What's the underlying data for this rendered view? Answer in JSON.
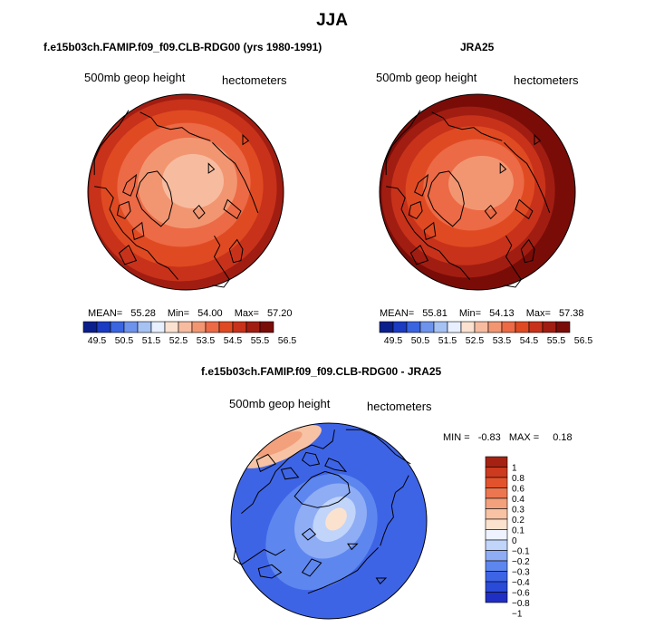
{
  "figure": {
    "season_title": "JJA",
    "colors": {
      "coast": "#000000",
      "scale_abs": [
        "#0b1f8c",
        "#1a3bc2",
        "#3a64e0",
        "#6e93ec",
        "#a6c2f3",
        "#e8f0ff",
        "#fbe1cf",
        "#f7bca0",
        "#f29672",
        "#ec6a45",
        "#e04a22",
        "#c8321a",
        "#a11d12",
        "#7a0c08"
      ],
      "scale_diff": [
        "#1f2fc4",
        "#2a4ad8",
        "#3e64e6",
        "#5e86ef",
        "#8fadf5",
        "#c1d4fa",
        "#eef3ff",
        "#fbe2cf",
        "#f7c3a4",
        "#f3a07c",
        "#ec7650",
        "#e2532d",
        "#cc3a1f",
        "#a52212"
      ]
    }
  },
  "panels": [
    {
      "title": "f.e15b03ch.FAMIP.f09_f09.CLB-RDG00 (yrs 1980-1991)",
      "field_label": "500mb geop height",
      "units_label": "hectometers",
      "stats": {
        "mean_label": "MEAN=",
        "mean": "55.28",
        "min_label": "Min=",
        "min": "54.00",
        "max_label": "Max=",
        "max": "57.20"
      }
    },
    {
      "title": "JRA25",
      "field_label": "500mb geop height",
      "units_label": "hectometers",
      "stats": {
        "mean_label": "MEAN=",
        "mean": "55.81",
        "min_label": "Min=",
        "min": "54.13",
        "max_label": "Max=",
        "max": "57.38"
      }
    },
    {
      "title": "f.e15b03ch.FAMIP.f09_f09.CLB-RDG00 - JRA25",
      "field_label": "500mb geop height",
      "units_label": "hectometers",
      "stats": {
        "min_label": "MIN =",
        "min": "-0.83",
        "max_label": "MAX =",
        "max": "0.18"
      }
    }
  ],
  "chart_data": [
    {
      "type": "heatmap",
      "projection": "polar stereographic (North Pole)",
      "title": "f.e15b03ch.FAMIP.f09_f09.CLB-RDG00 (yrs 1980-1991)",
      "variable": "500mb geop height",
      "units": "hectometers",
      "mean": 55.28,
      "min": 54.0,
      "max": 57.2,
      "colorbar_ticks": [
        "49.5",
        "50.5",
        "51.5",
        "52.5",
        "53.5",
        "54.5",
        "55.5",
        "56.5"
      ],
      "colorbar_orientation": "horizontal"
    },
    {
      "type": "heatmap",
      "projection": "polar stereographic (North Pole)",
      "title": "JRA25",
      "variable": "500mb geop height",
      "units": "hectometers",
      "mean": 55.81,
      "min": 54.13,
      "max": 57.38,
      "colorbar_ticks": [
        "49.5",
        "50.5",
        "51.5",
        "52.5",
        "53.5",
        "54.5",
        "55.5",
        "56.5"
      ],
      "colorbar_orientation": "horizontal"
    },
    {
      "type": "heatmap",
      "projection": "polar stereographic (North Pole)",
      "title": "f.e15b03ch.FAMIP.f09_f09.CLB-RDG00 - JRA25",
      "variable": "500mb geop height",
      "units": "hectometers",
      "min": -0.83,
      "max": 0.18,
      "colorbar_ticks": [
        "1",
        "0.8",
        "0.6",
        "0.4",
        "0.3",
        "0.2",
        "0.1",
        "0",
        "-0.1",
        "-0.2",
        "-0.3",
        "-0.4",
        "-0.6",
        "-0.8",
        "-1"
      ],
      "colorbar_orientation": "vertical"
    }
  ]
}
